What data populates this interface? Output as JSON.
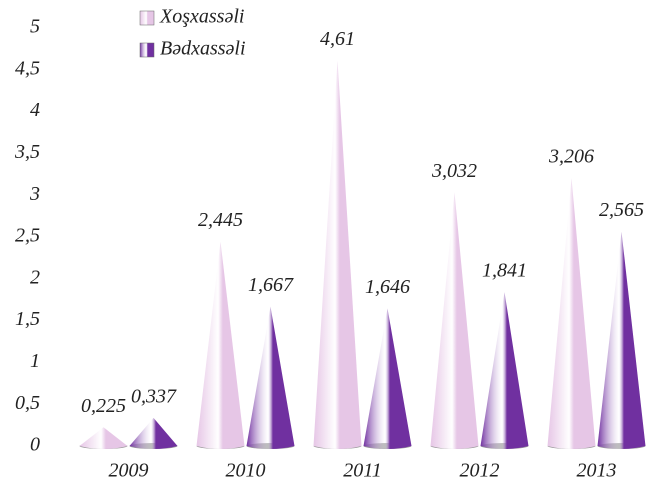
{
  "chart_data": {
    "type": "cone",
    "categories": [
      "2009",
      "2010",
      "2011",
      "2012",
      "2013"
    ],
    "series": [
      {
        "name": "Xoşxassəli",
        "color": "#e6c6e6",
        "values": [
          0.225,
          2.445,
          4.61,
          3.032,
          3.206
        ],
        "value_labels": [
          "0,225",
          "2,445",
          "4,61",
          "3,032",
          "3,206"
        ]
      },
      {
        "name": "Bədxassəli",
        "color": "#7030a0",
        "values": [
          0.337,
          1.667,
          1.646,
          1.841,
          2.565
        ],
        "value_labels": [
          "0,337",
          "1,667",
          "1,646",
          "1,841",
          "2,565"
        ]
      }
    ],
    "ylim": [
      0,
      5
    ],
    "yticks": [
      0,
      {
        "value": 0.5,
        "label": "0,5"
      },
      1,
      {
        "value": 1.5,
        "label": "1,5"
      },
      2,
      {
        "value": 2.5,
        "label": "2,5"
      },
      3,
      {
        "value": 3.5,
        "label": "3,5"
      },
      4,
      {
        "value": 4.5,
        "label": "4,5"
      },
      5
    ],
    "legend": "top-left"
  }
}
